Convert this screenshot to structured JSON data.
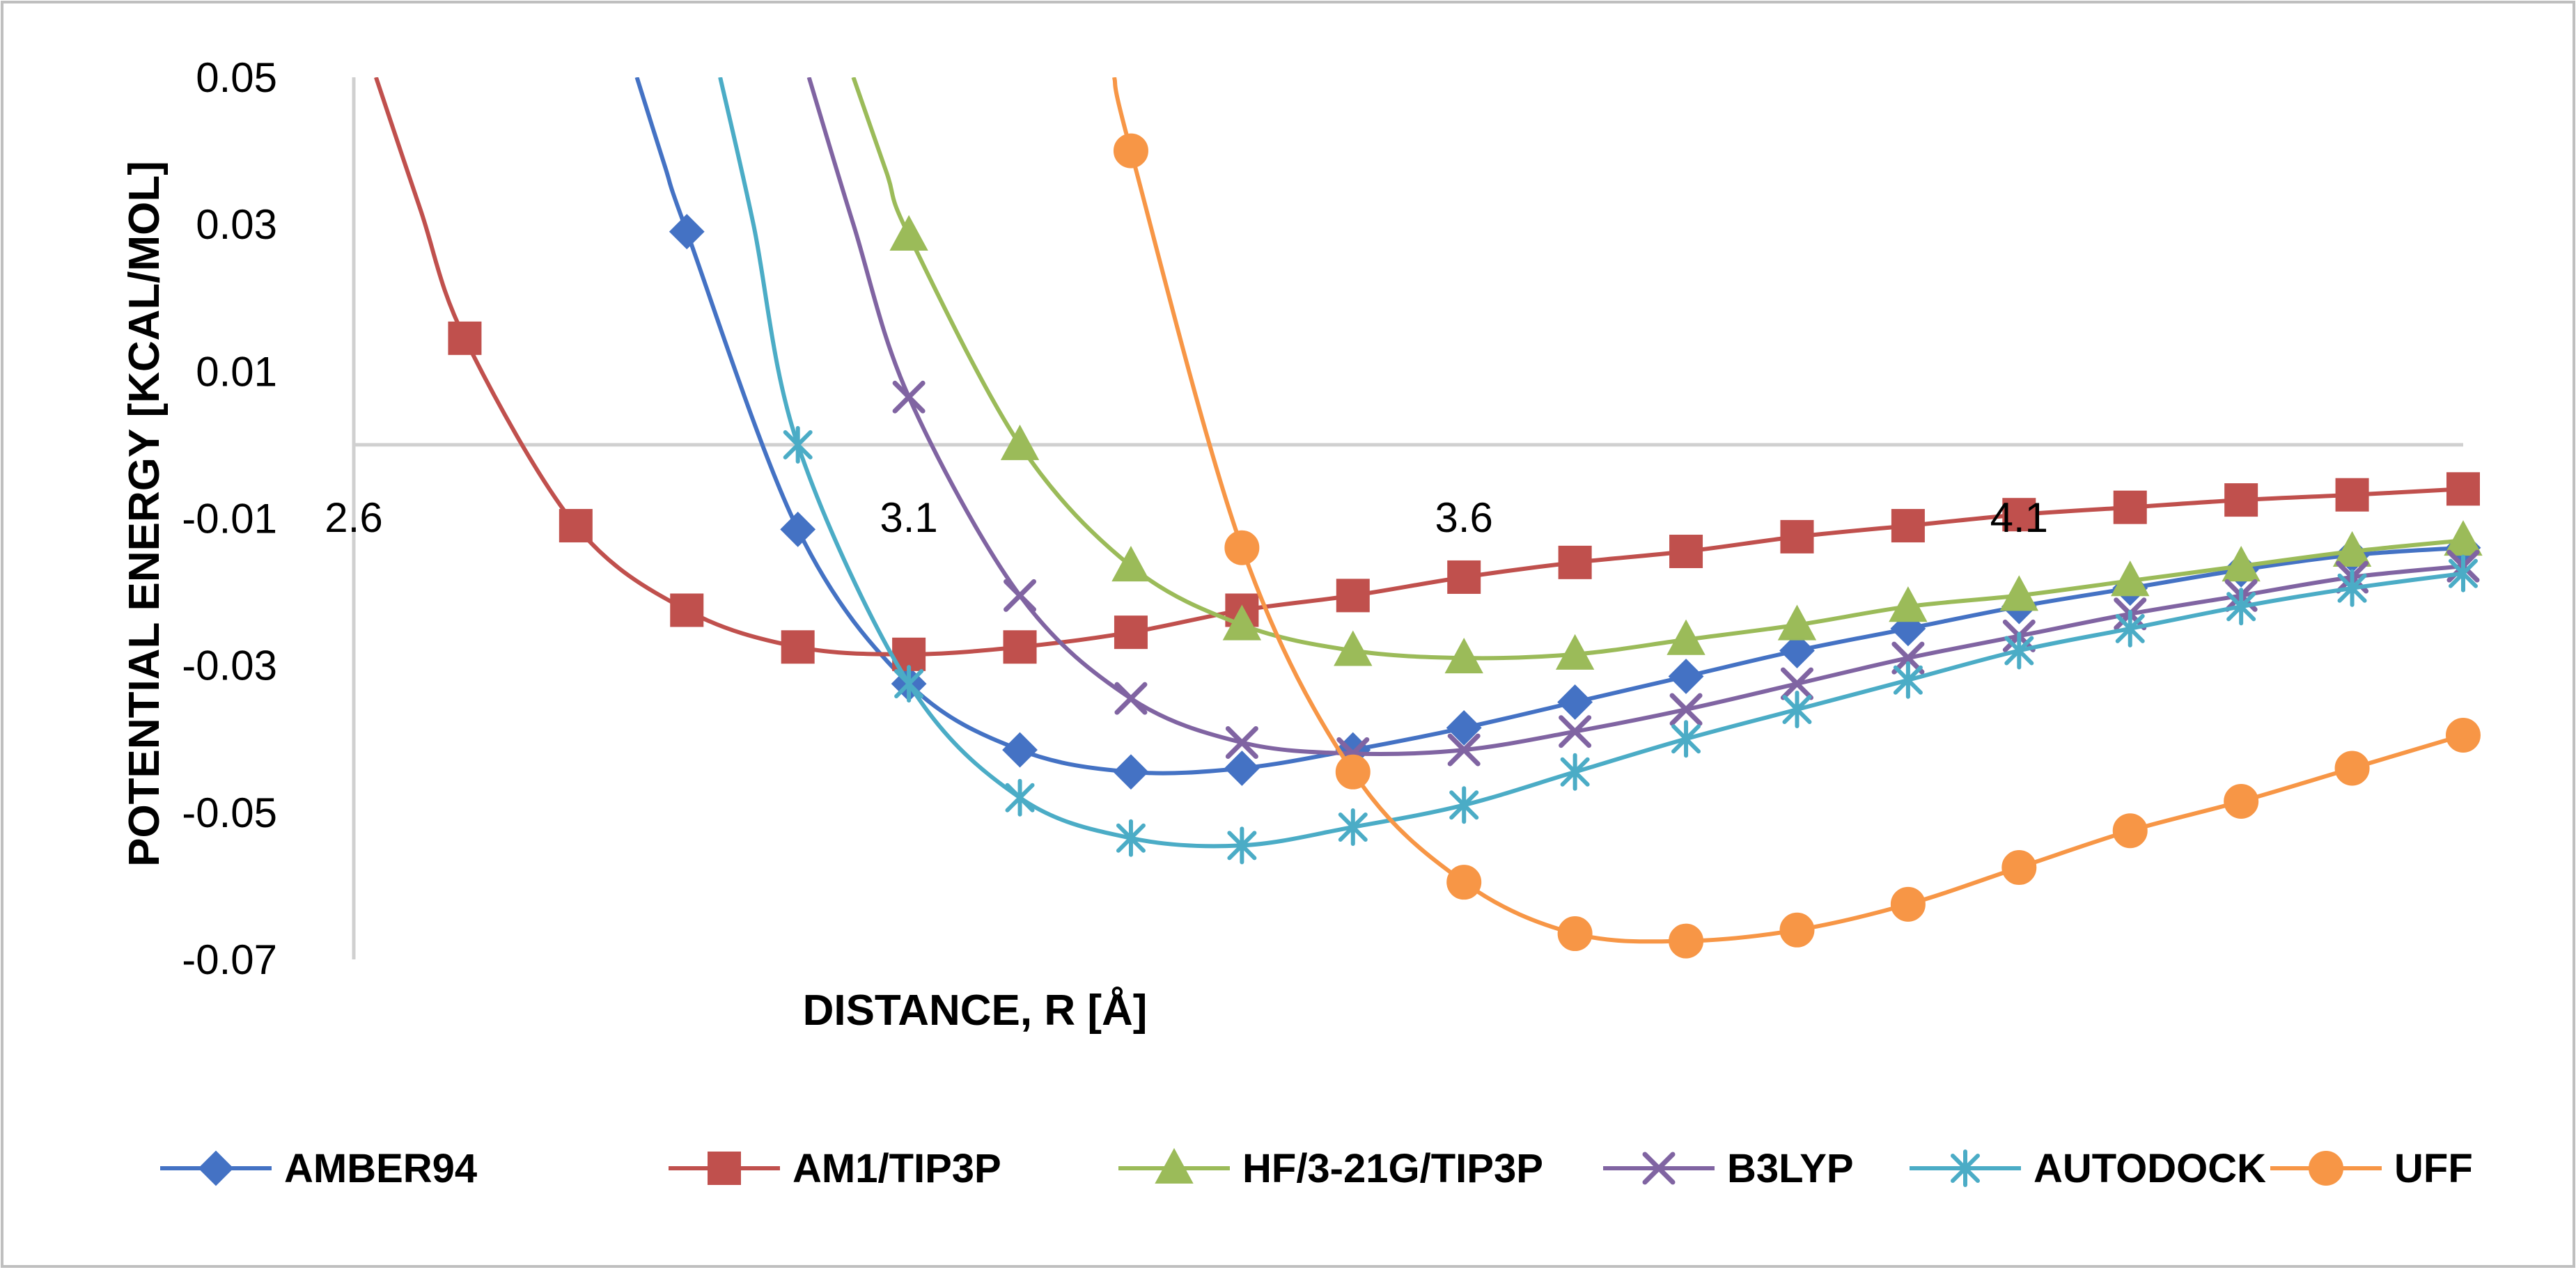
{
  "chart_data": {
    "type": "line",
    "title": "",
    "xlabel": "DISTANCE, R [Å]",
    "ylabel": "POTENTIAL ENERGY [KCAL/MOL]",
    "xlim": [
      2.6,
      4.5
    ],
    "ylim": [
      -0.07,
      0.05
    ],
    "x_ticks": [
      2.6,
      3.1,
      3.6,
      4.1
    ],
    "x_tick_labels": [
      "2.6",
      "3.1",
      "3.6",
      "4.1"
    ],
    "y_ticks": [
      0.05,
      0.03,
      0.01,
      -0.01,
      -0.03,
      -0.05,
      -0.07
    ],
    "y_tick_labels": [
      "0.05",
      "0.03",
      "0.01",
      "-0.01",
      "-0.03",
      "-0.05",
      "-0.07"
    ],
    "grid": false,
    "legend_position": "bottom",
    "series": [
      {
        "name": "AMBER94",
        "color": "#4472C4",
        "marker": "diamond",
        "x": [
          2.9,
          3.0,
          3.1,
          3.2,
          3.3,
          3.4,
          3.5,
          3.6,
          3.7,
          3.8,
          3.9,
          4.0,
          4.1,
          4.2,
          4.3,
          4.4,
          4.5
        ],
        "values": [
          0.029,
          -0.0115,
          -0.0325,
          -0.0415,
          -0.0445,
          -0.044,
          -0.0415,
          -0.0385,
          -0.035,
          -0.0315,
          -0.028,
          -0.025,
          -0.022,
          -0.0195,
          -0.017,
          -0.015,
          -0.014
        ],
        "leading_curve": [
          [
            2.855,
            0.05
          ],
          [
            2.88,
            0.038
          ]
        ]
      },
      {
        "name": "AM1/TIP3P",
        "color": "#C0504D",
        "marker": "square",
        "x": [
          2.7,
          2.8,
          2.9,
          3.0,
          3.1,
          3.2,
          3.3,
          3.4,
          3.5,
          3.6,
          3.7,
          3.8,
          3.9,
          4.0,
          4.1,
          4.2,
          4.3,
          4.4,
          4.5
        ],
        "values": [
          0.0145,
          -0.011,
          -0.0225,
          -0.0275,
          -0.0285,
          -0.0275,
          -0.0255,
          -0.0225,
          -0.0205,
          -0.018,
          -0.016,
          -0.0145,
          -0.0125,
          -0.011,
          -0.0095,
          -0.0085,
          -0.0075,
          -0.0068,
          -0.006
        ],
        "leading_curve": [
          [
            2.62,
            0.05
          ],
          [
            2.66,
            0.032
          ]
        ]
      },
      {
        "name": "HF/3-21G/TIP3P",
        "color": "#9BBB59",
        "marker": "triangle",
        "x": [
          3.1,
          3.2,
          3.3,
          3.4,
          3.5,
          3.6,
          3.7,
          3.8,
          3.9,
          4.0,
          4.1,
          4.2,
          4.3,
          4.4,
          4.5
        ],
        "values": [
          0.0285,
          0.0,
          -0.0165,
          -0.0245,
          -0.028,
          -0.029,
          -0.0285,
          -0.0265,
          -0.0245,
          -0.022,
          -0.0205,
          -0.0185,
          -0.0165,
          -0.0145,
          -0.013
        ],
        "leading_curve": [
          [
            3.05,
            0.05
          ],
          [
            3.08,
            0.037
          ]
        ]
      },
      {
        "name": "B3LYP",
        "color": "#8064A2",
        "marker": "x",
        "x": [
          3.1,
          3.2,
          3.3,
          3.4,
          3.5,
          3.6,
          3.7,
          3.8,
          3.9,
          4.0,
          4.1,
          4.2,
          4.3,
          4.4,
          4.5
        ],
        "values": [
          0.0065,
          -0.0205,
          -0.0345,
          -0.0405,
          -0.042,
          -0.0415,
          -0.039,
          -0.036,
          -0.0325,
          -0.029,
          -0.026,
          -0.023,
          -0.0205,
          -0.018,
          -0.0165
        ],
        "leading_curve": [
          [
            3.01,
            0.05
          ],
          [
            3.05,
            0.03
          ]
        ]
      },
      {
        "name": "AUTODOCK",
        "color": "#4BACC6",
        "marker": "star",
        "x": [
          3.0,
          3.1,
          3.2,
          3.3,
          3.4,
          3.5,
          3.6,
          3.7,
          3.8,
          3.9,
          4.0,
          4.1,
          4.2,
          4.3,
          4.4,
          4.5
        ],
        "values": [
          0.0,
          -0.0325,
          -0.048,
          -0.0535,
          -0.0545,
          -0.052,
          -0.049,
          -0.0445,
          -0.04,
          -0.036,
          -0.032,
          -0.028,
          -0.025,
          -0.022,
          -0.0195,
          -0.0175
        ],
        "leading_curve": [
          [
            2.93,
            0.05
          ],
          [
            2.96,
            0.03
          ]
        ]
      },
      {
        "name": "UFF",
        "color": "#F79646",
        "marker": "circle",
        "x": [
          3.3,
          3.4,
          3.5,
          3.6,
          3.7,
          3.8,
          3.9,
          4.0,
          4.1,
          4.2,
          4.3,
          4.4,
          4.5
        ],
        "values": [
          0.04,
          -0.014,
          -0.0445,
          -0.0595,
          -0.0665,
          -0.0675,
          -0.066,
          -0.0625,
          -0.0575,
          -0.0525,
          -0.0485,
          -0.044,
          -0.0395
        ],
        "leading_curve": [
          [
            3.285,
            0.05
          ]
        ]
      }
    ]
  }
}
